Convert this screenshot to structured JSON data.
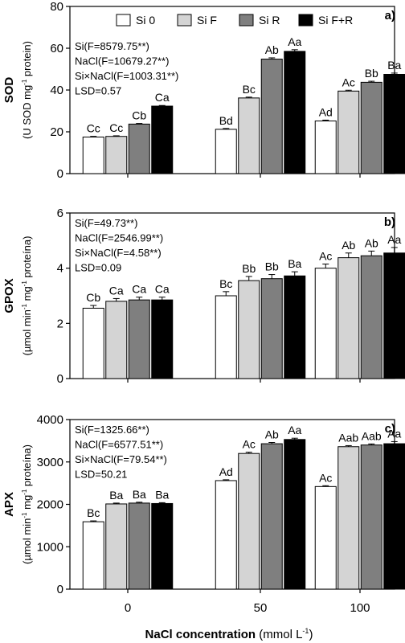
{
  "legend": [
    {
      "name": "Si 0",
      "color": "#ffffff"
    },
    {
      "name": "Si F",
      "color": "#d4d4d4"
    },
    {
      "name": "Si R",
      "color": "#7f7f7f"
    },
    {
      "name": "Si F+R",
      "color": "#000000"
    }
  ],
  "xlabel": {
    "bold": "NaCl concentration",
    "unit": " (mmol L",
    "sup": "-1",
    "close": ")"
  },
  "chart_data": [
    {
      "type": "bar",
      "panel": "a)",
      "categories": [
        "0",
        "50",
        "100"
      ],
      "ylim": [
        0,
        80
      ],
      "yticks": [
        0,
        20,
        40,
        60,
        80
      ],
      "ylabel": "SOD",
      "ylabel_unit_parts": [
        {
          "t": "(U SOD mg",
          "sup": false
        },
        {
          "t": "-1",
          "sup": true
        },
        {
          "t": " protein)",
          "sup": false
        }
      ],
      "stats": [
        "Si(F=8579.75**)",
        "NaCl(F=10679.27**)",
        "Si×NaCl(F=1003.31**)",
        "LSD=0.57"
      ],
      "series": [
        {
          "name": "Si 0",
          "values": [
            17.5,
            21.2,
            25.2
          ],
          "errors": [
            0.3,
            0.4,
            0.4
          ],
          "labels": [
            "Cc",
            "Bd",
            "Ad"
          ]
        },
        {
          "name": "Si F",
          "values": [
            17.8,
            36.2,
            39.5
          ],
          "errors": [
            0.3,
            0.4,
            0.4
          ],
          "labels": [
            "Cc",
            "Bc",
            "Ac"
          ]
        },
        {
          "name": "Si R",
          "values": [
            23.7,
            54.8,
            43.7
          ],
          "errors": [
            0.3,
            0.6,
            0.5
          ],
          "labels": [
            "Cb",
            "Ab",
            "Bb"
          ]
        },
        {
          "name": "Si F+R",
          "values": [
            32.3,
            58.5,
            47.5
          ],
          "errors": [
            0.3,
            0.8,
            0.6
          ],
          "labels": [
            "Ca",
            "Aa",
            "Ba"
          ]
        }
      ]
    },
    {
      "type": "bar",
      "panel": "b)",
      "categories": [
        "0",
        "50",
        "100"
      ],
      "ylim": [
        0,
        6
      ],
      "yticks": [
        0,
        2,
        4,
        6
      ],
      "ylabel": "GPOX",
      "ylabel_unit_parts": [
        {
          "t": "(µmol min",
          "sup": false
        },
        {
          "t": "-1",
          "sup": true
        },
        {
          "t": " mg",
          "sup": false
        },
        {
          "t": "-1",
          "sup": true
        },
        {
          "t": " proteína)",
          "sup": false
        }
      ],
      "stats": [
        "Si(F=49.73**)",
        "NaCl(F=2546.99**)",
        "Si×NaCl(F=4.58**)",
        "LSD=0.09"
      ],
      "series": [
        {
          "name": "Si 0",
          "values": [
            2.55,
            3.0,
            4.0
          ],
          "errors": [
            0.1,
            0.15,
            0.15
          ],
          "labels": [
            "Cb",
            "Bc",
            "Ac"
          ]
        },
        {
          "name": "Si F",
          "values": [
            2.8,
            3.55,
            4.38
          ],
          "errors": [
            0.1,
            0.15,
            0.17
          ],
          "labels": [
            "Ca",
            "Bb",
            "Ab"
          ]
        },
        {
          "name": "Si R",
          "values": [
            2.85,
            3.62,
            4.45
          ],
          "errors": [
            0.1,
            0.15,
            0.17
          ],
          "labels": [
            "Ca",
            "Bb",
            "Ab"
          ]
        },
        {
          "name": "Si F+R",
          "values": [
            2.85,
            3.72,
            4.55
          ],
          "errors": [
            0.1,
            0.15,
            0.2
          ],
          "labels": [
            "Ca",
            "Ba",
            "Aa"
          ]
        }
      ]
    },
    {
      "type": "bar",
      "panel": "c)",
      "categories": [
        "0",
        "50",
        "100"
      ],
      "ylim": [
        0,
        4000
      ],
      "yticks": [
        0,
        1000,
        2000,
        3000,
        4000
      ],
      "ylabel": "APX",
      "ylabel_unit_parts": [
        {
          "t": "(µmol min",
          "sup": false
        },
        {
          "t": "-1",
          "sup": true
        },
        {
          "t": " mg",
          "sup": false
        },
        {
          "t": "-1",
          "sup": true
        },
        {
          "t": " proteína)",
          "sup": false
        }
      ],
      "stats": [
        "Si(F=1325.66**)",
        "NaCl(F=6577.51**)",
        "Si×NaCl(F=79.54**)",
        "LSD=50.21"
      ],
      "series": [
        {
          "name": "Si 0",
          "values": [
            1590,
            2560,
            2420
          ],
          "errors": [
            20,
            20,
            20
          ],
          "labels": [
            "Bc",
            "Ad",
            "Ac"
          ]
        },
        {
          "name": "Si F",
          "values": [
            2010,
            3200,
            3360
          ],
          "errors": [
            20,
            30,
            25
          ],
          "labels": [
            "Ba",
            "Ac",
            "Aab"
          ]
        },
        {
          "name": "Si R",
          "values": [
            2030,
            3430,
            3400
          ],
          "errors": [
            20,
            30,
            25
          ],
          "labels": [
            "Ba",
            "Ab",
            "Aab"
          ]
        },
        {
          "name": "Si F+R",
          "values": [
            2020,
            3530,
            3430
          ],
          "errors": [
            20,
            30,
            50
          ],
          "labels": [
            "Ba",
            "Aa",
            "Aa"
          ]
        }
      ]
    }
  ]
}
